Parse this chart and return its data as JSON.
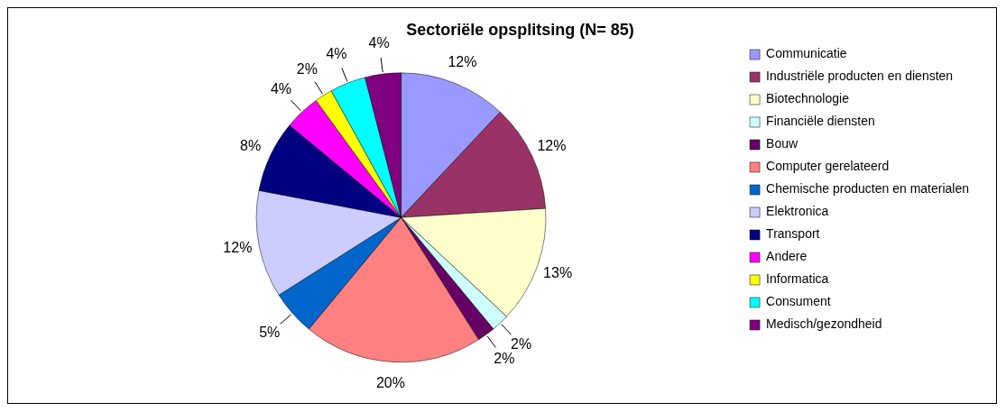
{
  "chart_data": {
    "type": "pie",
    "title": "Sectoriële opsplitsing (N= 85)",
    "categories": [
      "Communicatie",
      "Industriële producten en diensten",
      "Biotechnologie",
      "Financiële diensten",
      "Bouw",
      "Computer gerelateerd",
      "Chemische producten en materialen",
      "Elektronica",
      "Transport",
      "Andere",
      "Informatica",
      "Consument",
      "Medisch/gezondheid"
    ],
    "values": [
      12,
      12,
      13,
      2,
      2,
      20,
      5,
      12,
      8,
      4,
      2,
      4,
      4
    ],
    "value_labels": [
      "12%",
      "12%",
      "13%",
      "2%",
      "2%",
      "20%",
      "5%",
      "12%",
      "8%",
      "4%",
      "2%",
      "4%",
      "4%"
    ],
    "colors": [
      "#9999ff",
      "#993366",
      "#ffffcc",
      "#ccffff",
      "#660066",
      "#ff8080",
      "#0066cc",
      "#ccccff",
      "#000080",
      "#ff00ff",
      "#ffff00",
      "#00ffff",
      "#800080"
    ],
    "legend": "right"
  }
}
